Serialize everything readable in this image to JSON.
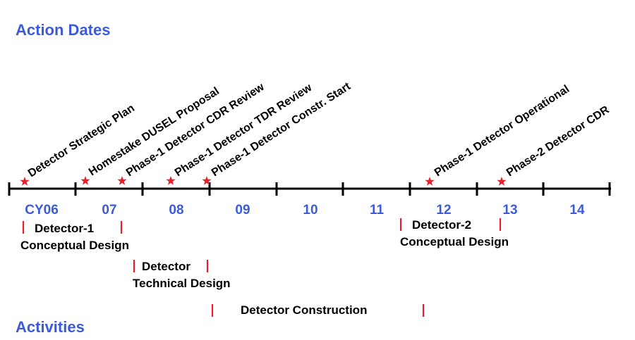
{
  "headings": {
    "action_dates": "Action Dates",
    "activities": "Activities"
  },
  "timeline": {
    "years": [
      "CY06",
      "07",
      "08",
      "09",
      "10",
      "11",
      "12",
      "13",
      "14"
    ]
  },
  "milestones": [
    {
      "label": "Detector Strategic Plan",
      "year": "CY06"
    },
    {
      "label": "Homestake DUSEL Proposal",
      "year": "07"
    },
    {
      "label": "Phase-1 Detector CDR Review",
      "year": "07"
    },
    {
      "label": "Phase-1 Detector TDR Review",
      "year": "08"
    },
    {
      "label": "Phase-1 Detector Constr. Start",
      "year": "08"
    },
    {
      "label": "Phase-1 Detector Operational",
      "year": "12"
    },
    {
      "label": "Phase-2 Detector CDR",
      "year": "13"
    }
  ],
  "activities": [
    {
      "line1": "Detector-1",
      "line2": "Conceptual Design"
    },
    {
      "line1": "Detector",
      "line2": "Technical Design"
    },
    {
      "line1": "Detector Construction",
      "line2": ""
    },
    {
      "line1": "Detector-2",
      "line2": "Conceptual Design"
    }
  ],
  "colors": {
    "heading": "#3b5bdb",
    "year": "#3b5bdb",
    "star": "#e8202a",
    "marker": "#e8202a",
    "axis": "#000000"
  }
}
